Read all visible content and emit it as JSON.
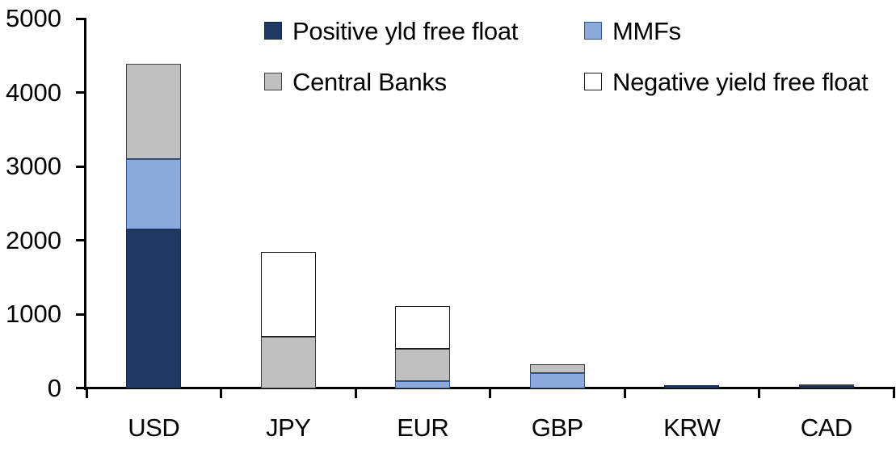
{
  "chart_data": {
    "type": "bar",
    "stacked": true,
    "title": "",
    "xlabel": "",
    "ylabel": "",
    "categories": [
      "USD",
      "JPY",
      "EUR",
      "GBP",
      "KRW",
      "CAD"
    ],
    "series": [
      {
        "name": "Positive yld free float",
        "color": "#1F3864",
        "border_color": "#152741",
        "values": [
          2150,
          0,
          0,
          0,
          40,
          30
        ]
      },
      {
        "name": "MMFs",
        "color": "#8CA9DC",
        "border_color": "#2E5597",
        "values": [
          950,
          0,
          100,
          210,
          0,
          0
        ]
      },
      {
        "name": "Central Banks",
        "color": "#C0C0C0",
        "border_color": "#404040",
        "values": [
          1290,
          700,
          430,
          120,
          0,
          30
        ]
      },
      {
        "name": "Negative yield free float",
        "color": "#FFFFFF",
        "border_color": "#1A1A1A",
        "values": [
          0,
          1140,
          580,
          0,
          0,
          0
        ]
      }
    ],
    "totals": {
      "USD": 4390,
      "JPY": 1840,
      "EUR": 1110,
      "GBP": 330,
      "KRW": 40,
      "CAD": 60
    },
    "ylim": [
      0,
      5000
    ],
    "yticks": [
      0,
      1000,
      2000,
      3000,
      4000,
      5000
    ],
    "ytick_labels": [
      "0",
      "1000",
      "2000",
      "3000",
      "4000",
      "5000"
    ],
    "grid": false,
    "legend_position": "top",
    "legend_order": [
      "Positive yld free float",
      "MMFs",
      "Central Banks",
      "Negative yield free float"
    ],
    "axis_color": "#000000",
    "text_color": "#000000",
    "background_color": "#FFFFFF"
  }
}
